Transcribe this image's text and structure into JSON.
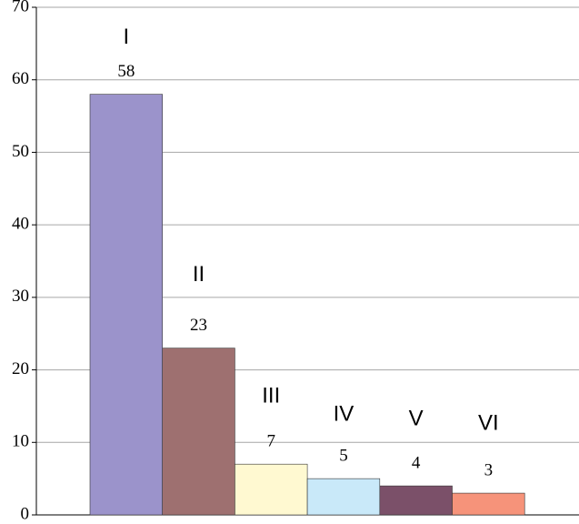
{
  "chart_data": {
    "type": "bar",
    "categories": [
      "I",
      "II",
      "III",
      "IV",
      "V",
      "VI"
    ],
    "values": [
      58,
      23,
      7,
      5,
      4,
      3
    ],
    "colors": [
      "#9b93cb",
      "#9e7070",
      "#fff9d1",
      "#c9e9f9",
      "#7b5069",
      "#f6937a"
    ],
    "ylim": [
      0,
      70
    ],
    "yticks": [
      0,
      10,
      20,
      30,
      40,
      50,
      60,
      70
    ],
    "grid": true
  }
}
